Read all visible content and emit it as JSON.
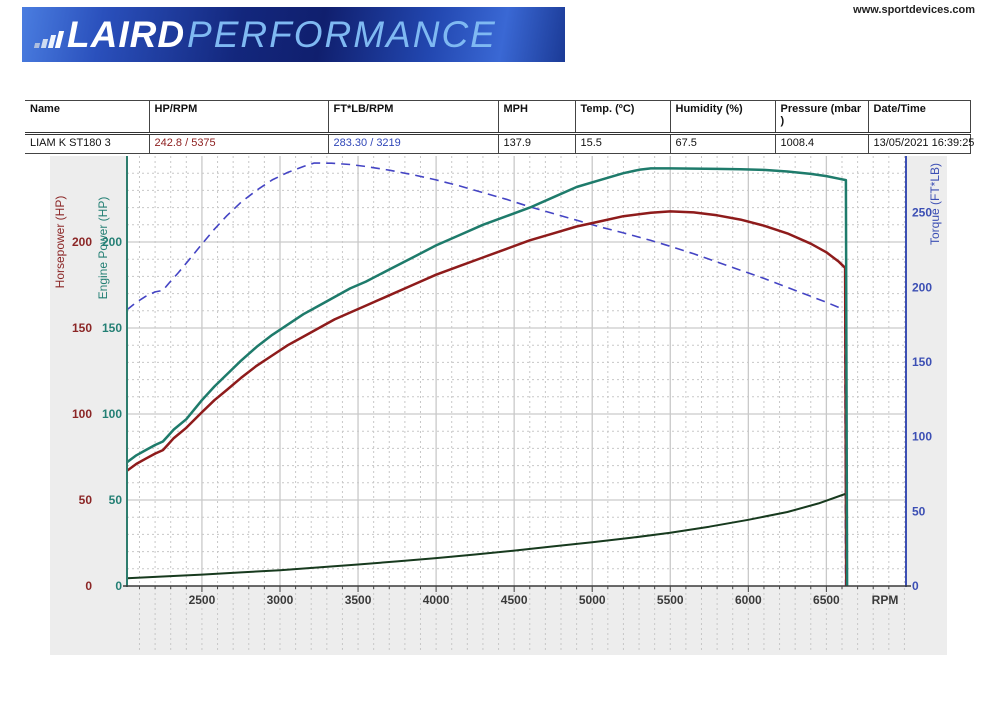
{
  "site": {
    "url": "www.sportdevices.com"
  },
  "logo": {
    "brand_bold": "LAIRD",
    "brand_light": "PERFORMANCE"
  },
  "table": {
    "headers": [
      "Name",
      "HP/RPM",
      "FT*LB/RPM",
      "MPH",
      "Temp. (ºC)",
      "Humidity (%)",
      "Pressure (mbar\n)",
      "Date/Time"
    ],
    "row": {
      "name": "LIAM K ST180 3",
      "hp_rpm": "242.8 / 5375",
      "ftlb_rpm": "283.30 / 3219",
      "mph": "137.9",
      "temp": "15.5",
      "humidity": "67.5",
      "pressure": "1008.4",
      "datetime": "13/05/2021 16:39:25"
    }
  },
  "chart_data": {
    "type": "line",
    "x_axis": {
      "title": "RPM",
      "min": 2020,
      "max": 7010,
      "major_tick_step": 500,
      "minor_tick_step": 100,
      "major_labels": [
        2500,
        3000,
        3500,
        4000,
        4500,
        5000,
        5500,
        6000,
        6500
      ]
    },
    "left_axis": {
      "titles": [
        "Horsepower (HP)",
        "Engine Power (HP)"
      ],
      "title_colors": [
        "#8b2626",
        "#237f74"
      ],
      "min": 0,
      "max": 250,
      "tick_labels": [
        0,
        50,
        100,
        150,
        200
      ],
      "minor_step": 10,
      "major_step": 50
    },
    "right_axis": {
      "title": "Torque (FT*LB)",
      "color": "#3c4fb4",
      "min": 0,
      "max": 288,
      "tick_labels": [
        0,
        50,
        100,
        150,
        200,
        250
      ]
    },
    "grid": {
      "major_color": "#c9c9c9",
      "minor_color": "#c8c8c8",
      "minor_dashed": true
    },
    "peaks": {
      "power_hp": "242.8 / 5375",
      "torque_ftlb": "283.30 / 3219"
    },
    "run_end_rpm": 6630,
    "series": [
      {
        "name": "torque-ftlb",
        "axis": "right",
        "color": "#4444c4",
        "width": 1.6,
        "dash": "9 6",
        "points": [
          [
            2020,
            185
          ],
          [
            2080,
            190
          ],
          [
            2140,
            194
          ],
          [
            2200,
            197
          ],
          [
            2250,
            198
          ],
          [
            2290,
            203
          ],
          [
            2350,
            210
          ],
          [
            2430,
            220
          ],
          [
            2500,
            229
          ],
          [
            2580,
            239
          ],
          [
            2660,
            248
          ],
          [
            2750,
            257
          ],
          [
            2850,
            265
          ],
          [
            2950,
            272
          ],
          [
            3050,
            277
          ],
          [
            3150,
            281
          ],
          [
            3219,
            283.3
          ],
          [
            3330,
            283.2
          ],
          [
            3450,
            282.3
          ],
          [
            3550,
            281
          ],
          [
            3700,
            278.5
          ],
          [
            3850,
            275.5
          ],
          [
            4000,
            272
          ],
          [
            4150,
            268
          ],
          [
            4300,
            263.5
          ],
          [
            4450,
            259
          ],
          [
            4600,
            254
          ],
          [
            4750,
            249.5
          ],
          [
            4900,
            245
          ],
          [
            5050,
            240.5
          ],
          [
            5200,
            236.5
          ],
          [
            5375,
            231.5
          ],
          [
            5500,
            227.5
          ],
          [
            5650,
            222.5
          ],
          [
            5800,
            217
          ],
          [
            5950,
            211.5
          ],
          [
            6100,
            206
          ],
          [
            6250,
            200
          ],
          [
            6400,
            194
          ],
          [
            6500,
            190
          ],
          [
            6580,
            186.5
          ],
          [
            6618,
            184.5
          ],
          [
            6623,
            0
          ]
        ]
      },
      {
        "name": "horsepower-hp",
        "axis": "left",
        "color": "#8e1b1b",
        "width": 2.5,
        "points": [
          [
            2020,
            67
          ],
          [
            2080,
            71
          ],
          [
            2140,
            74
          ],
          [
            2200,
            77
          ],
          [
            2250,
            79
          ],
          [
            2280,
            82
          ],
          [
            2320,
            86
          ],
          [
            2400,
            92
          ],
          [
            2500,
            101
          ],
          [
            2580,
            108
          ],
          [
            2660,
            114
          ],
          [
            2750,
            121
          ],
          [
            2850,
            128
          ],
          [
            2950,
            134
          ],
          [
            3050,
            140
          ],
          [
            3150,
            145
          ],
          [
            3250,
            150
          ],
          [
            3350,
            155
          ],
          [
            3450,
            159
          ],
          [
            3550,
            163
          ],
          [
            3700,
            169
          ],
          [
            3850,
            175
          ],
          [
            4000,
            181
          ],
          [
            4150,
            186
          ],
          [
            4300,
            191
          ],
          [
            4450,
            196
          ],
          [
            4600,
            201
          ],
          [
            4750,
            205
          ],
          [
            4900,
            209
          ],
          [
            5050,
            212
          ],
          [
            5200,
            215
          ],
          [
            5375,
            217
          ],
          [
            5500,
            217.8
          ],
          [
            5650,
            217.2
          ],
          [
            5800,
            215.5
          ],
          [
            5950,
            213
          ],
          [
            6100,
            209.5
          ],
          [
            6250,
            205
          ],
          [
            6400,
            199
          ],
          [
            6500,
            194
          ],
          [
            6580,
            188.5
          ],
          [
            6620,
            185
          ],
          [
            6627,
            0
          ]
        ]
      },
      {
        "name": "vehicle-speed",
        "axis": "left",
        "color": "#173a1e",
        "width": 2,
        "points": [
          [
            2020,
            4.5
          ],
          [
            2250,
            5.5
          ],
          [
            2500,
            6.6
          ],
          [
            2750,
            7.9
          ],
          [
            3000,
            9.2
          ],
          [
            3250,
            10.8
          ],
          [
            3500,
            12.5
          ],
          [
            3750,
            14.3
          ],
          [
            4000,
            16.2
          ],
          [
            4250,
            18.3
          ],
          [
            4500,
            20.6
          ],
          [
            4750,
            23
          ],
          [
            5000,
            25.4
          ],
          [
            5250,
            28
          ],
          [
            5500,
            31
          ],
          [
            5750,
            34.5
          ],
          [
            6000,
            38.5
          ],
          [
            6250,
            43
          ],
          [
            6450,
            48
          ],
          [
            6620,
            53.5
          ]
        ]
      },
      {
        "name": "engine-power-hp",
        "axis": "left",
        "color": "#1e7b6b",
        "width": 2.5,
        "points": [
          [
            2020,
            72
          ],
          [
            2080,
            76
          ],
          [
            2140,
            79
          ],
          [
            2200,
            82
          ],
          [
            2250,
            84
          ],
          [
            2280,
            87
          ],
          [
            2320,
            91
          ],
          [
            2400,
            97
          ],
          [
            2500,
            108
          ],
          [
            2580,
            116
          ],
          [
            2660,
            123
          ],
          [
            2750,
            131
          ],
          [
            2850,
            139
          ],
          [
            2950,
            146
          ],
          [
            3050,
            152
          ],
          [
            3150,
            158
          ],
          [
            3250,
            163
          ],
          [
            3350,
            168
          ],
          [
            3450,
            173
          ],
          [
            3550,
            177
          ],
          [
            3700,
            184
          ],
          [
            3850,
            191
          ],
          [
            4000,
            198
          ],
          [
            4150,
            204
          ],
          [
            4300,
            210
          ],
          [
            4450,
            215
          ],
          [
            4600,
            220
          ],
          [
            4750,
            226
          ],
          [
            4900,
            232
          ],
          [
            5050,
            236
          ],
          [
            5200,
            240
          ],
          [
            5300,
            242
          ],
          [
            5375,
            242.8
          ],
          [
            5500,
            242.8
          ],
          [
            5650,
            242.7
          ],
          [
            5800,
            242.5
          ],
          [
            5950,
            242.3
          ],
          [
            6100,
            241.9
          ],
          [
            6250,
            241
          ],
          [
            6400,
            239.6
          ],
          [
            6500,
            238.3
          ],
          [
            6580,
            236.8
          ],
          [
            6625,
            236
          ],
          [
            6633,
            0
          ]
        ]
      }
    ]
  }
}
